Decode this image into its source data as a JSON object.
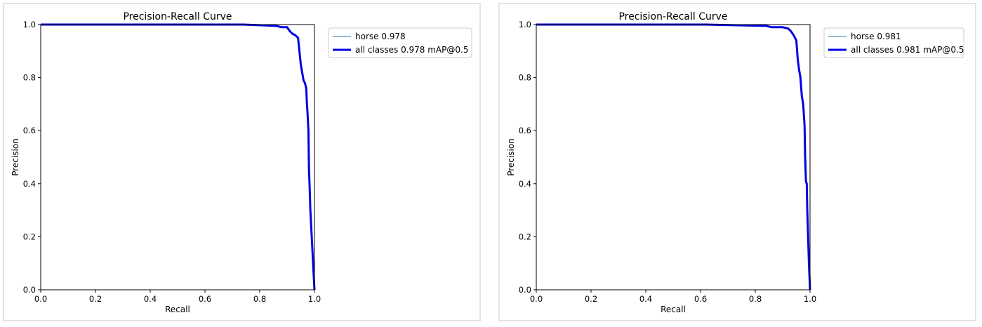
{
  "chart_data": [
    {
      "type": "line",
      "title": "Precision-Recall Curve",
      "xlabel": "Recall",
      "ylabel": "Precision",
      "xlim": [
        0,
        1
      ],
      "ylim": [
        0,
        1
      ],
      "xticks": [
        "0.0",
        "0.2",
        "0.4",
        "0.6",
        "0.8",
        "1.0"
      ],
      "yticks": [
        "0.0",
        "0.2",
        "0.4",
        "0.6",
        "0.8",
        "1.0"
      ],
      "grid": false,
      "legend_position": "outside-right-top",
      "series": [
        {
          "name": "horse 0.978",
          "color": "#1f77b4",
          "width": "thin",
          "x": [
            0,
            0.74,
            0.86,
            0.88,
            0.9,
            0.91,
            0.92,
            0.93,
            0.94,
            0.945,
            0.95,
            0.955,
            0.96,
            0.965,
            0.97,
            0.972,
            0.975,
            0.978,
            0.98,
            0.982,
            0.985,
            0.99,
            0.995,
            1.0
          ],
          "y": [
            1.0,
            1.0,
            0.995,
            0.99,
            0.99,
            0.975,
            0.965,
            0.96,
            0.95,
            0.9,
            0.85,
            0.82,
            0.79,
            0.78,
            0.76,
            0.71,
            0.66,
            0.6,
            0.45,
            0.4,
            0.3,
            0.2,
            0.1,
            0.0
          ]
        },
        {
          "name": "all classes 0.978 mAP@0.5",
          "color": "#0000e6",
          "width": "thick",
          "x": [
            0,
            0.74,
            0.86,
            0.88,
            0.9,
            0.91,
            0.92,
            0.93,
            0.94,
            0.945,
            0.95,
            0.955,
            0.96,
            0.965,
            0.97,
            0.972,
            0.975,
            0.978,
            0.98,
            0.982,
            0.985,
            0.99,
            0.995,
            1.0
          ],
          "y": [
            1.0,
            1.0,
            0.995,
            0.99,
            0.99,
            0.975,
            0.965,
            0.96,
            0.95,
            0.9,
            0.85,
            0.82,
            0.79,
            0.78,
            0.76,
            0.71,
            0.66,
            0.6,
            0.45,
            0.4,
            0.3,
            0.2,
            0.1,
            0.0
          ]
        }
      ]
    },
    {
      "type": "line",
      "title": "Precision-Recall Curve",
      "xlabel": "Recall",
      "ylabel": "Precision",
      "xlim": [
        0,
        1
      ],
      "ylim": [
        0,
        1
      ],
      "xticks": [
        "0.0",
        "0.2",
        "0.4",
        "0.6",
        "0.8",
        "1.0"
      ],
      "yticks": [
        "0.0",
        "0.2",
        "0.4",
        "0.6",
        "0.8",
        "1.0"
      ],
      "grid": false,
      "legend_position": "outside-right-top",
      "series": [
        {
          "name": "horse 0.981",
          "color": "#1f77b4",
          "width": "thin",
          "x": [
            0,
            0.62,
            0.84,
            0.86,
            0.9,
            0.92,
            0.93,
            0.94,
            0.95,
            0.955,
            0.96,
            0.965,
            0.97,
            0.975,
            0.98,
            0.982,
            0.985,
            0.988,
            0.99,
            0.993,
            0.996,
            1.0
          ],
          "y": [
            1.0,
            1.0,
            0.995,
            0.99,
            0.99,
            0.985,
            0.975,
            0.96,
            0.94,
            0.87,
            0.83,
            0.8,
            0.73,
            0.7,
            0.62,
            0.51,
            0.41,
            0.4,
            0.3,
            0.2,
            0.1,
            0.0
          ]
        },
        {
          "name": "all classes 0.981 mAP@0.5",
          "color": "#0000e6",
          "width": "thick",
          "x": [
            0,
            0.62,
            0.84,
            0.86,
            0.9,
            0.92,
            0.93,
            0.94,
            0.95,
            0.955,
            0.96,
            0.965,
            0.97,
            0.975,
            0.98,
            0.982,
            0.985,
            0.988,
            0.99,
            0.993,
            0.996,
            1.0
          ],
          "y": [
            1.0,
            1.0,
            0.995,
            0.99,
            0.99,
            0.985,
            0.975,
            0.96,
            0.94,
            0.87,
            0.83,
            0.8,
            0.73,
            0.7,
            0.62,
            0.51,
            0.41,
            0.4,
            0.3,
            0.2,
            0.1,
            0.0
          ]
        }
      ]
    }
  ]
}
